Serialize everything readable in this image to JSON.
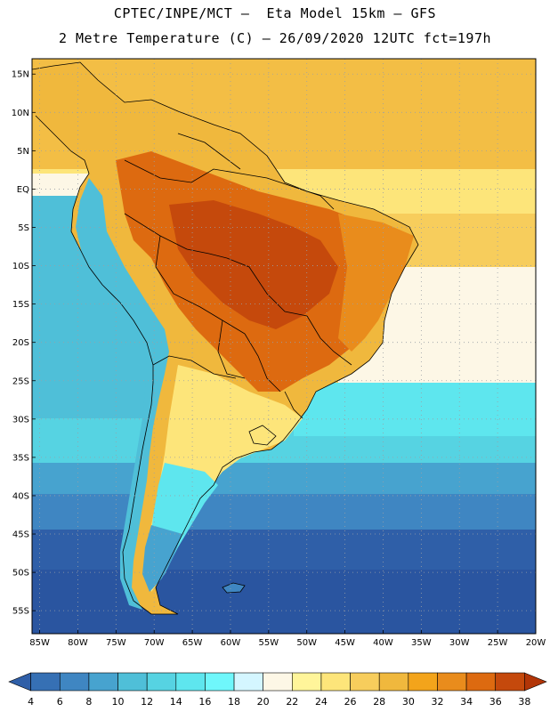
{
  "title": {
    "line1": "CPTEC/INPE/MCT –  Eta Model 15km – GFS",
    "line2": "2 Metre Temperature (C) – 26/09/2020 12UTC fct=197h"
  },
  "axes": {
    "lat_labels": [
      "15N",
      "10N",
      "5N",
      "EQ",
      "5S",
      "10S",
      "15S",
      "20S",
      "25S",
      "30S",
      "35S",
      "40S",
      "45S",
      "50S",
      "55S"
    ],
    "lat_values": [
      15,
      10,
      5,
      0,
      -5,
      -10,
      -15,
      -20,
      -25,
      -30,
      -35,
      -40,
      -45,
      -50,
      -55
    ],
    "lon_labels": [
      "85W",
      "80W",
      "75W",
      "70W",
      "65W",
      "60W",
      "55W",
      "50W",
      "45W",
      "40W",
      "35W",
      "30W",
      "25W",
      "20W"
    ],
    "lon_values": [
      -85,
      -80,
      -75,
      -70,
      -65,
      -60,
      -55,
      -50,
      -45,
      -40,
      -35,
      -30,
      -25,
      -20
    ],
    "lat_range": [
      -58,
      17
    ],
    "lon_range": [
      -86,
      -20
    ]
  },
  "colorbar": {
    "labels": [
      "4",
      "6",
      "8",
      "10",
      "12",
      "14",
      "16",
      "18",
      "20",
      "22",
      "24",
      "26",
      "28",
      "30",
      "32",
      "34",
      "36",
      "38"
    ],
    "colors": [
      "#2f5fa8",
      "#3670b4",
      "#3f86c2",
      "#47a3cf",
      "#4fbfd8",
      "#56d3e2",
      "#5ee6ee",
      "#6ff7fb",
      "#d4f6ff",
      "#fdf7e6",
      "#fff59a",
      "#fde57a",
      "#f7cd5c",
      "#f0b83d",
      "#f3a41b",
      "#e98c1c",
      "#dd6a10",
      "#c5490c",
      "#b23507"
    ]
  }
}
